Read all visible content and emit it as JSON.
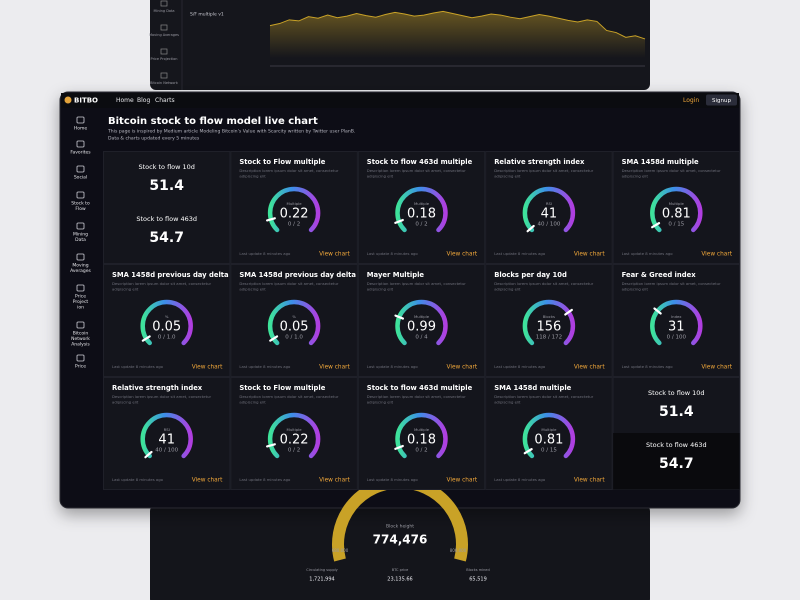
{
  "top_window": {
    "sidebar": [
      "Mining Data",
      "Moving Averages",
      "Price Projection",
      "Bitcoin Network"
    ],
    "chart_title": "S/F multiple v1",
    "chart": {
      "type": "line",
      "color": "#c9a227",
      "ylim": [
        0,
        10
      ],
      "values": [
        6.1,
        6.5,
        7.2,
        7.0,
        7.8,
        7.5,
        8.1,
        7.6,
        7.9,
        8.4,
        8.0,
        7.7,
        8.2,
        8.6,
        8.3,
        7.9,
        8.1,
        8.5,
        8.8,
        8.4,
        8.0,
        7.6,
        7.9,
        8.3,
        8.1,
        7.7,
        7.4,
        7.8,
        8.2,
        7.9,
        7.5,
        7.1,
        6.8,
        7.2,
        6.9,
        5.2,
        4.8,
        3.9,
        4.2,
        3.6
      ]
    }
  },
  "nav": {
    "logo": "BITBO",
    "links": [
      "Home",
      "Blog",
      "Charts"
    ],
    "login": "Login",
    "signup": "Signup"
  },
  "sidebar": [
    [
      "Home"
    ],
    [
      "Favorites"
    ],
    [
      "Social"
    ],
    [
      "Stock to",
      "Flow"
    ],
    [
      "Mining",
      "Data"
    ],
    [
      "Moving",
      "Averages"
    ],
    [
      "Price",
      "Project",
      "ion"
    ],
    [
      "Bitcoin",
      "Network",
      "Analysis"
    ],
    [
      "Price"
    ]
  ],
  "header": {
    "title": "Bitcoin stock to flow model live chart",
    "subtitle": [
      "This page is inspired by Medium article Modeling Bitcoin's Value with Scarcity written by Twitter user PlanB.",
      "Data & charts updated every 5 minutes"
    ]
  },
  "cards": [
    {
      "kind": "stat",
      "items": [
        {
          "label": "Stock to flow 10d",
          "value": 51.4
        },
        {
          "label": "Stock to flow 463d",
          "value": 54.7
        }
      ]
    },
    {
      "kind": "gauge",
      "title": "Stock to Flow multiple",
      "description": [
        "Description lorem ipsum dolor sit amet, consectetur",
        "adipiscing elit"
      ],
      "gauge_label": "Multiple",
      "value": 0.22,
      "scale": [
        0,
        2
      ],
      "scale_label": "0 / 2",
      "footer": "Last update 8 minutes ago",
      "link": "View chart"
    },
    {
      "kind": "gauge",
      "title": "Stock to flow 463d multiple",
      "description": [
        "Description lorem ipsum dolor sit amet, consectetur",
        "adipiscing elit"
      ],
      "gauge_label": "Multiple",
      "value": 0.18,
      "scale": [
        0,
        2
      ],
      "scale_label": "0 / 2",
      "footer": "Last update 8 minutes ago",
      "link": "View chart"
    },
    {
      "kind": "gauge",
      "title": "Relative strength index",
      "description": [
        "Description lorem ipsum dolor sit amet, consectetur",
        "adipiscing elit"
      ],
      "gauge_label": "RSI",
      "value": 41,
      "scale": [
        40,
        100
      ],
      "scale_label": "40 / 100",
      "footer": "Last update 8 minutes ago",
      "link": "View chart"
    },
    {
      "kind": "gauge",
      "title": "SMA 1458d multiple",
      "description": [
        "Description lorem ipsum dolor sit amet, consectetur",
        "adipiscing elit"
      ],
      "gauge_label": "Multiple",
      "value": 0.81,
      "scale": [
        0,
        15
      ],
      "scale_label": "0 / 15",
      "footer": "Last update 8 minutes ago",
      "link": "View chart"
    },
    {
      "kind": "gauge",
      "title": "SMA 1458d previous day delta",
      "description": [
        "Description lorem ipsum dolor sit amet, consectetur",
        "adipiscing elit"
      ],
      "gauge_label": "%",
      "value": 0.05,
      "scale": [
        0,
        1
      ],
      "scale_label": "0 / 1.0",
      "footer": "Last update 8 minutes ago",
      "link": "View chart"
    },
    {
      "kind": "gauge",
      "title": "SMA 1458d previous day delta",
      "description": [
        "Description lorem ipsum dolor sit amet, consectetur",
        "adipiscing elit"
      ],
      "gauge_label": "%",
      "value": 0.05,
      "scale": [
        0,
        1
      ],
      "scale_label": "0 / 1.0",
      "footer": "Last update 8 minutes ago",
      "link": "View chart"
    },
    {
      "kind": "gauge",
      "title": "Mayer Multiple",
      "description": [
        "Description lorem ipsum dolor sit amet, consectetur",
        "adipiscing elit"
      ],
      "gauge_label": "Multiple",
      "value": 0.99,
      "scale": [
        0,
        4
      ],
      "scale_label": "0 / 4",
      "footer": "Last update 8 minutes ago",
      "link": "View chart"
    },
    {
      "kind": "gauge",
      "title": "Blocks per day 10d",
      "description": [
        "Description lorem ipsum dolor sit amet, consectetur",
        "adipiscing elit"
      ],
      "gauge_label": "Blocks",
      "value": 156,
      "scale": [
        118,
        172
      ],
      "scale_label": "118 / 172",
      "footer": "Last update 8 minutes ago",
      "link": "View chart"
    },
    {
      "kind": "gauge",
      "title": "Fear & Greed index",
      "description": [
        "Description lorem ipsum dolor sit amet, consectetur",
        "adipiscing elit"
      ],
      "gauge_label": "Index",
      "value": 31,
      "scale": [
        0,
        100
      ],
      "scale_label": "0 / 100",
      "footer": "Last update 8 minutes ago",
      "link": "View chart"
    },
    {
      "kind": "gauge",
      "title": "Relative strength index",
      "description": [
        "Description lorem ipsum dolor sit amet, consectetur",
        "adipiscing elit"
      ],
      "gauge_label": "RSI",
      "value": 41,
      "scale": [
        40,
        100
      ],
      "scale_label": "40 / 100",
      "footer": "Last update 8 minutes ago",
      "link": "View chart"
    },
    {
      "kind": "gauge",
      "title": "Stock to Flow multiple",
      "description": [
        "Description lorem ipsum dolor sit amet, consectetur",
        "adipiscing elit"
      ],
      "gauge_label": "Multiple",
      "value": 0.22,
      "scale": [
        0,
        2
      ],
      "scale_label": "0 / 2",
      "footer": "Last update 8 minutes ago",
      "link": "View chart"
    },
    {
      "kind": "gauge",
      "title": "Stock to flow 463d multiple",
      "description": [
        "Description lorem ipsum dolor sit amet, consectetur",
        "adipiscing elit"
      ],
      "gauge_label": "Multiple",
      "value": 0.18,
      "scale": [
        0,
        2
      ],
      "scale_label": "0 / 2",
      "footer": "Last update 8 minutes ago",
      "link": "View chart"
    },
    {
      "kind": "gauge",
      "title": "SMA 1458d multiple",
      "description": [
        "Description lorem ipsum dolor sit amet, consectetur",
        "adipiscing elit"
      ],
      "gauge_label": "Multiple",
      "value": 0.81,
      "scale": [
        0,
        15
      ],
      "scale_label": "0 / 15",
      "footer": "Last update 8 minutes ago",
      "link": "View chart"
    },
    {
      "kind": "stat",
      "items": [
        {
          "label": "Stock to flow 10d",
          "value": 51.4
        },
        {
          "label": "Stock to flow 463d",
          "value": 54.7
        }
      ]
    }
  ],
  "bottom_window": {
    "gauge_label": "Block height",
    "value": "774,476",
    "min_label": "680,000",
    "max_label": "800,000",
    "stats": [
      {
        "label": "Circulating supply",
        "value": "1,721,994"
      },
      {
        "label": "BTC price",
        "value": "23,135.66"
      },
      {
        "label": "Blocks mined",
        "value": "65,519"
      }
    ]
  }
}
